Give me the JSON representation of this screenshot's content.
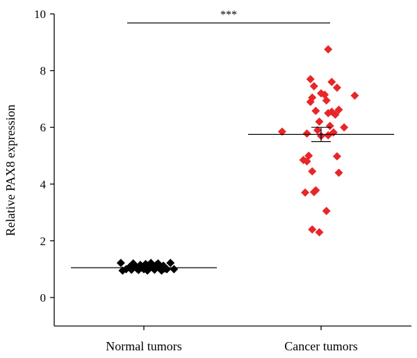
{
  "chart_data": {
    "type": "scatter",
    "title": "",
    "xlabel": "",
    "ylabel": "Relative PAX8 expression",
    "ylim": [
      0,
      10
    ],
    "yticks": [
      "0",
      "2",
      "4",
      "6",
      "8",
      "10"
    ],
    "grid": false,
    "legend": "none",
    "categories": [
      "Normal tumors",
      "Cancer tumors"
    ],
    "significance": "***",
    "series": [
      {
        "color": "#000000",
        "mean": 1.05,
        "sem": 0.03,
        "points": [
          {
            "x": -0.13,
            "y": 1.22
          },
          {
            "x": -0.12,
            "y": 0.95
          },
          {
            "x": -0.1,
            "y": 1.0
          },
          {
            "x": -0.08,
            "y": 1.08
          },
          {
            "x": -0.07,
            "y": 0.98
          },
          {
            "x": -0.06,
            "y": 1.2
          },
          {
            "x": -0.05,
            "y": 1.1
          },
          {
            "x": -0.03,
            "y": 0.97
          },
          {
            "x": -0.02,
            "y": 1.15
          },
          {
            "x": -0.01,
            "y": 1.05
          },
          {
            "x": 0.0,
            "y": 1.0
          },
          {
            "x": 0.01,
            "y": 1.18
          },
          {
            "x": 0.02,
            "y": 0.95
          },
          {
            "x": 0.03,
            "y": 1.12
          },
          {
            "x": 0.04,
            "y": 1.22
          },
          {
            "x": 0.05,
            "y": 1.05
          },
          {
            "x": 0.06,
            "y": 0.98
          },
          {
            "x": 0.07,
            "y": 1.15
          },
          {
            "x": 0.08,
            "y": 1.2
          },
          {
            "x": 0.09,
            "y": 1.08
          },
          {
            "x": 0.1,
            "y": 0.95
          },
          {
            "x": 0.11,
            "y": 1.12
          },
          {
            "x": 0.12,
            "y": 1.02
          },
          {
            "x": 0.13,
            "y": 1.0
          },
          {
            "x": 0.15,
            "y": 1.22
          },
          {
            "x": 0.17,
            "y": 1.0
          },
          {
            "x": -0.04,
            "y": 1.02
          },
          {
            "x": 0.03,
            "y": 1.03
          }
        ]
      },
      {
        "color": "#e8262a",
        "mean": 5.75,
        "sem": 0.25,
        "points": [
          {
            "x": 0.04,
            "y": 8.75
          },
          {
            "x": -0.06,
            "y": 7.7
          },
          {
            "x": 0.06,
            "y": 7.6
          },
          {
            "x": -0.04,
            "y": 7.45
          },
          {
            "x": 0.09,
            "y": 7.4
          },
          {
            "x": 0.0,
            "y": 7.2
          },
          {
            "x": 0.02,
            "y": 7.15
          },
          {
            "x": -0.05,
            "y": 7.05
          },
          {
            "x": 0.19,
            "y": 7.12
          },
          {
            "x": 0.03,
            "y": 6.95
          },
          {
            "x": -0.06,
            "y": 6.9
          },
          {
            "x": 0.06,
            "y": 6.55
          },
          {
            "x": 0.1,
            "y": 6.62
          },
          {
            "x": -0.03,
            "y": 6.58
          },
          {
            "x": 0.08,
            "y": 6.45
          },
          {
            "x": 0.04,
            "y": 6.5
          },
          {
            "x": -0.01,
            "y": 6.2
          },
          {
            "x": 0.05,
            "y": 6.05
          },
          {
            "x": 0.13,
            "y": 6.0
          },
          {
            "x": -0.02,
            "y": 5.9
          },
          {
            "x": -0.22,
            "y": 5.85
          },
          {
            "x": 0.07,
            "y": 5.82
          },
          {
            "x": -0.08,
            "y": 5.78
          },
          {
            "x": 0.0,
            "y": 5.7
          },
          {
            "x": 0.04,
            "y": 5.72
          },
          {
            "x": -0.07,
            "y": 5.0
          },
          {
            "x": 0.09,
            "y": 4.98
          },
          {
            "x": -0.1,
            "y": 4.85
          },
          {
            "x": -0.08,
            "y": 4.8
          },
          {
            "x": -0.05,
            "y": 4.45
          },
          {
            "x": 0.1,
            "y": 4.4
          },
          {
            "x": -0.03,
            "y": 3.78
          },
          {
            "x": -0.04,
            "y": 3.72
          },
          {
            "x": -0.09,
            "y": 3.7
          },
          {
            "x": 0.03,
            "y": 3.05
          },
          {
            "x": -0.05,
            "y": 2.4
          },
          {
            "x": -0.01,
            "y": 2.3
          }
        ]
      }
    ]
  }
}
